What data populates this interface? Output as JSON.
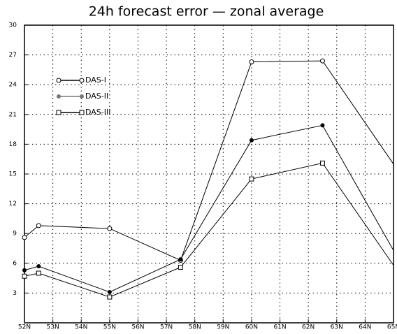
{
  "chart_data": {
    "type": "line",
    "title": "24h forecast error — zonal average",
    "x": [
      52,
      52.5,
      55,
      57.5,
      60,
      62.5,
      65
    ],
    "series": [
      {
        "name": "DAS-I",
        "color": "#000000",
        "marker": "circle-open",
        "values": [
          8.6,
          9.8,
          9.5,
          6.3,
          26.3,
          26.4,
          16.0
        ]
      },
      {
        "name": "DAS-II",
        "color": "#000000",
        "marker": "circle-filled",
        "values": [
          5.3,
          5.7,
          3.1,
          6.4,
          18.4,
          19.9,
          7.3
        ]
      },
      {
        "name": "DAS-III",
        "color": "#000000",
        "marker": "square-open",
        "values": [
          4.7,
          5.0,
          2.6,
          5.6,
          14.5,
          16.1,
          5.8
        ]
      }
    ],
    "xlim": [
      52,
      65
    ],
    "xticks": [
      {
        "value": 52,
        "label": "52N"
      },
      {
        "value": 53,
        "label": "53N"
      },
      {
        "value": 54,
        "label": "54N"
      },
      {
        "value": 55,
        "label": "55N"
      },
      {
        "value": 56,
        "label": "56N"
      },
      {
        "value": 57,
        "label": "57N"
      },
      {
        "value": 58,
        "label": "58N"
      },
      {
        "value": 59,
        "label": "59N"
      },
      {
        "value": 60,
        "label": "60N"
      },
      {
        "value": 61,
        "label": "61N"
      },
      {
        "value": 62,
        "label": "62N"
      },
      {
        "value": 63,
        "label": "63N"
      },
      {
        "value": 64,
        "label": "64N"
      },
      {
        "value": 65,
        "label": "65N"
      }
    ],
    "ylim": [
      0,
      30
    ],
    "yticks": [
      3,
      6,
      9,
      12,
      15,
      18,
      21,
      24,
      27,
      30
    ],
    "grid": true
  }
}
